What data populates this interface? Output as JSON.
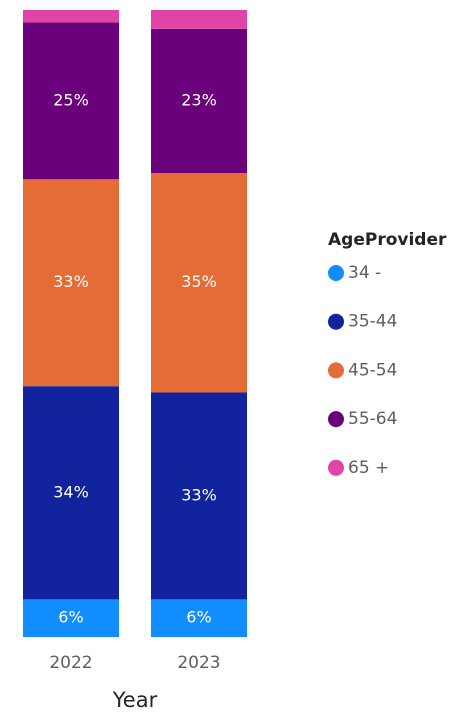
{
  "chart_data": {
    "type": "bar",
    "stacked": true,
    "x_label": "Year",
    "categories": [
      "2022",
      "2023"
    ],
    "ylim": [
      0,
      100
    ],
    "legend_title": "AgeProvider",
    "legend": "right",
    "series": [
      {
        "name": "34 -",
        "color": "#118dff",
        "values": [
          6,
          6
        ],
        "value_labels": [
          "6%",
          "6%"
        ]
      },
      {
        "name": "35-44",
        "color": "#12239e",
        "values": [
          34,
          33
        ],
        "value_labels": [
          "34%",
          "33%"
        ]
      },
      {
        "name": "45-54",
        "color": "#e66c37",
        "values": [
          33,
          35
        ],
        "value_labels": [
          "33%",
          "35%"
        ]
      },
      {
        "name": "55-64",
        "color": "#6b007b",
        "values": [
          25,
          23
        ],
        "value_labels": [
          "25%",
          "23%"
        ]
      },
      {
        "name": "65 +",
        "color": "#e044a7",
        "values": [
          2,
          3
        ],
        "value_labels": [
          null,
          null
        ]
      }
    ]
  }
}
